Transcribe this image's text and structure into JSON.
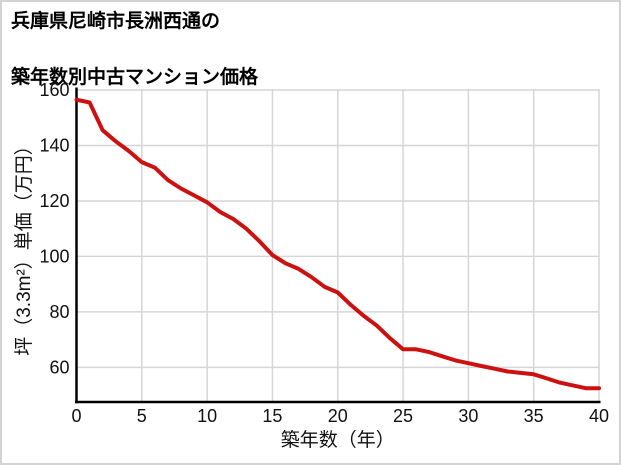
{
  "title": {
    "line1": "兵庫県尼崎市長洲西通の",
    "line2": "築年数別中古マンション価格"
  },
  "chart_data": {
    "type": "line",
    "title": "兵庫県尼崎市長洲西通の築年数別中古マンション価格",
    "xlabel": "築年数（年）",
    "ylabel": "坪（3.3m²）単価（万円）",
    "x": [
      0,
      1,
      2,
      3,
      4,
      5,
      6,
      7,
      8,
      9,
      10,
      11,
      12,
      13,
      14,
      15,
      16,
      17,
      18,
      19,
      20,
      21,
      22,
      23,
      24,
      25,
      26,
      27,
      28,
      29,
      30,
      31,
      32,
      33,
      34,
      35,
      36,
      37,
      38,
      39,
      40
    ],
    "values": [
      156.5,
      155.5,
      145.5,
      141.5,
      138,
      134,
      132,
      127.5,
      124.5,
      122,
      119.5,
      116,
      113.5,
      110,
      105.5,
      100.5,
      97.5,
      95.5,
      92.5,
      89,
      87,
      82.5,
      78.5,
      75,
      70.5,
      66.5,
      66.5,
      65.5,
      64,
      62.5,
      61.5,
      60.5,
      59.5,
      58.5,
      58,
      57.5,
      56,
      54.5,
      53.5,
      52.5,
      52.5
    ],
    "x_ticks": [
      0,
      5,
      10,
      15,
      20,
      25,
      30,
      35,
      40
    ],
    "y_ticks": [
      160,
      140,
      120,
      100,
      80,
      60
    ],
    "xlim": [
      0,
      40
    ],
    "ylim": [
      47.5,
      160
    ],
    "grid": true,
    "legend": "none",
    "colors": {
      "line": "#cc1111",
      "grid": "#d6d6d6",
      "axis": "#000000",
      "text": "#111111",
      "background": "#ffffff",
      "page_border": "#d3d3d3"
    }
  }
}
